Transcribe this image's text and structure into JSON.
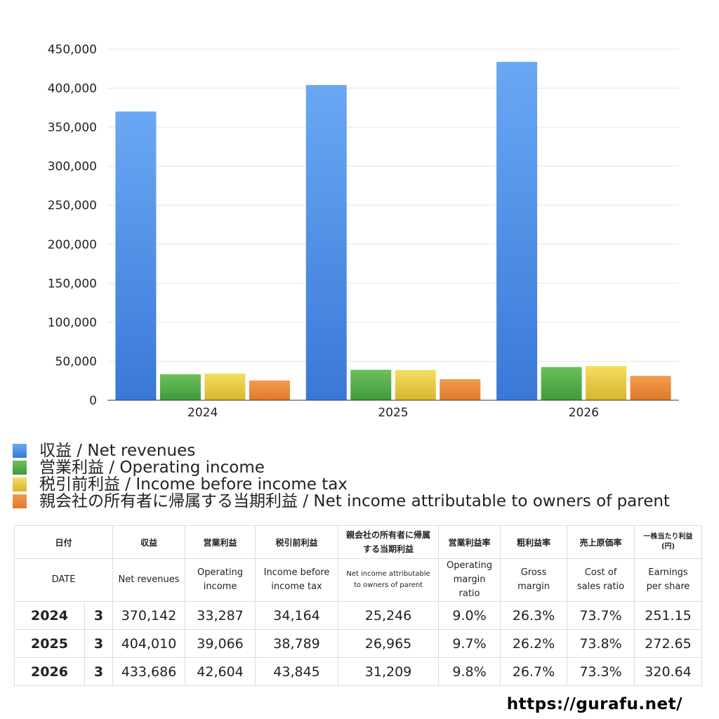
{
  "chart_data": {
    "type": "bar",
    "categories": [
      "2024",
      "2025",
      "2026"
    ],
    "series": [
      {
        "name": "収益 / Net revenues",
        "values": [
          370142,
          404010,
          433686
        ],
        "color": "#3a78d8",
        "color_light": "#6aa8f4"
      },
      {
        "name": "営業利益 / Operating income",
        "values": [
          33287,
          39066,
          42604
        ],
        "color": "#3f9a3b",
        "color_light": "#6dc05b"
      },
      {
        "name": "税引前利益 / Income before income tax",
        "values": [
          34164,
          38789,
          43845
        ],
        "color": "#d8b52c",
        "color_light": "#f4de60"
      },
      {
        "name": "親会社の所有者に帰属する当期利益 / Net income attributable to owners of parent",
        "values": [
          25246,
          26965,
          31209
        ],
        "color": "#e0782c",
        "color_light": "#f09c4c"
      }
    ],
    "yticks": [
      "0",
      "50,000",
      "100,000",
      "150,000",
      "200,000",
      "250,000",
      "300,000",
      "350,000",
      "400,000",
      "450,000"
    ],
    "ylim": [
      0,
      450000
    ],
    "grid": true,
    "legend_position": "bottom"
  },
  "legend": [
    "収益 / Net revenues",
    "営業利益 / Operating income",
    "税引前利益 / Income before income tax",
    "親会社の所有者に帰属する当期利益 / Net income attributable to owners of parent"
  ],
  "table": {
    "header_ja": [
      "日付",
      "収益",
      "営業利益",
      "税引前利益",
      "親会社の所有者に帰属する当期利益",
      "営業利益率",
      "粗利益率",
      "売上原価率",
      "一株当たり利益(円)"
    ],
    "header_en": [
      "DATE",
      "Net revenues",
      "Operating income",
      "Income before income tax",
      "Net income attributable to owners of parent",
      "Operating margin ratio",
      "Gross margin",
      "Cost of sales ratio",
      "Earnings per share"
    ],
    "rows": [
      {
        "year": "2024",
        "month": "3",
        "values": [
          "370,142",
          "33,287",
          "34,164",
          "25,246",
          "9.0%",
          "26.3%",
          "73.7%",
          "251.15"
        ]
      },
      {
        "year": "2025",
        "month": "3",
        "values": [
          "404,010",
          "39,066",
          "38,789",
          "26,965",
          "9.7%",
          "26.2%",
          "73.8%",
          "272.65"
        ]
      },
      {
        "year": "2026",
        "month": "3",
        "values": [
          "433,686",
          "42,604",
          "43,845",
          "31,209",
          "9.8%",
          "26.7%",
          "73.3%",
          "320.64"
        ]
      }
    ]
  },
  "watermark": "https://gurafu.net/"
}
